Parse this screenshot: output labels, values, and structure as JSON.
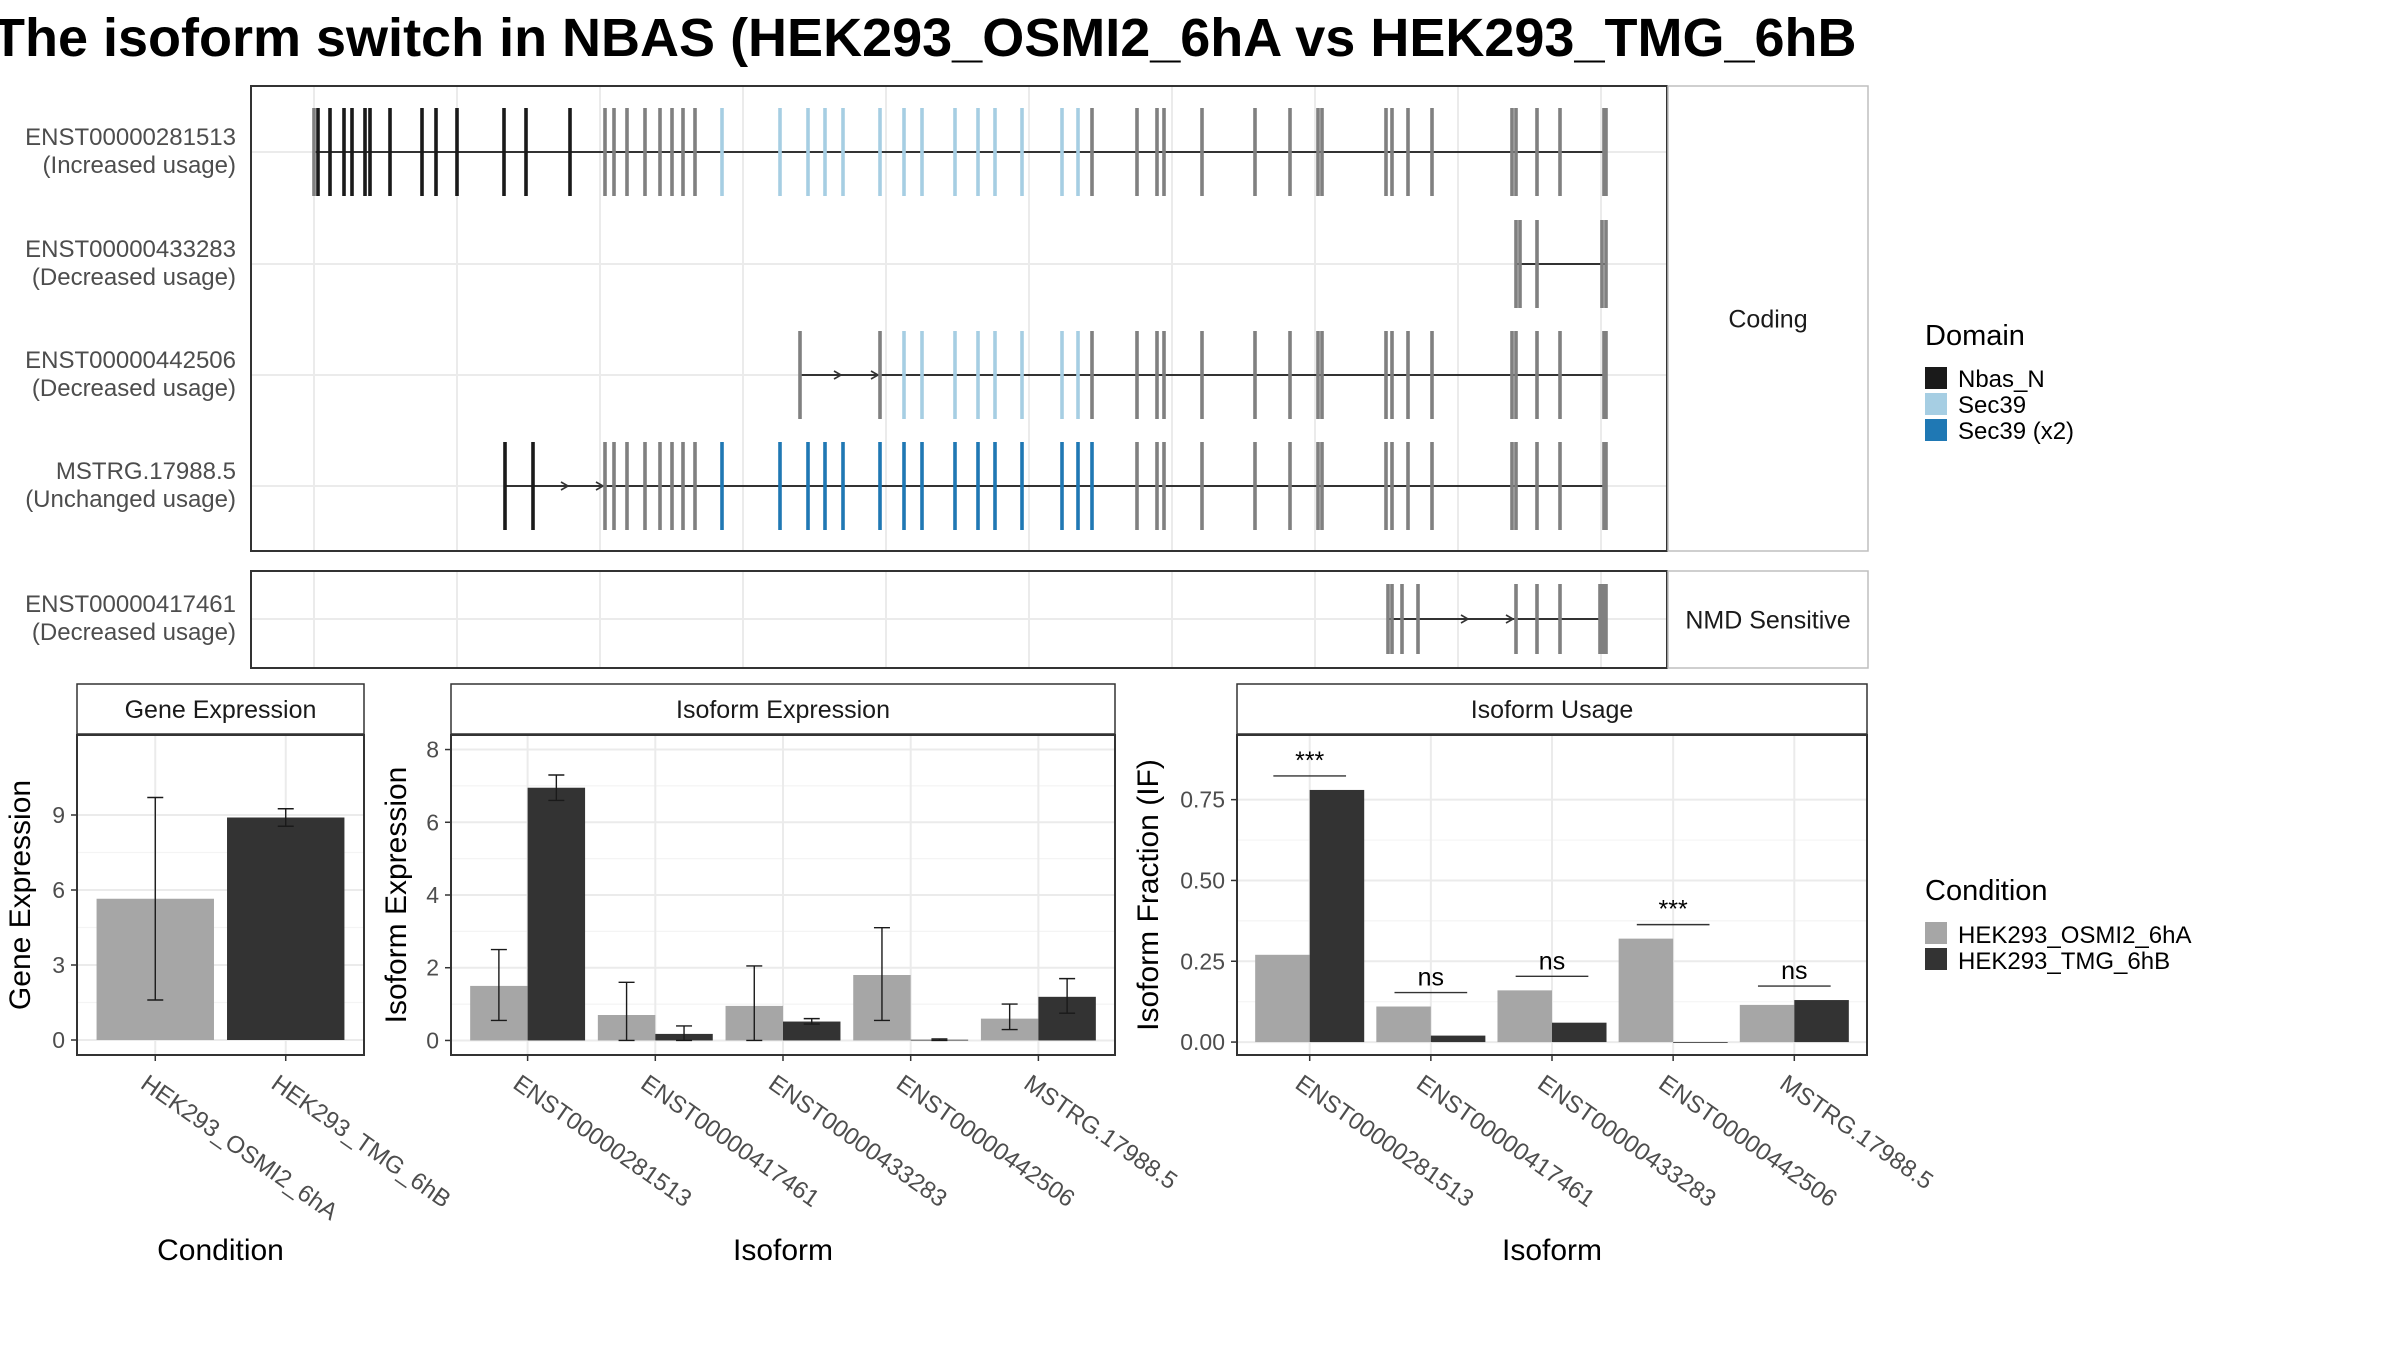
{
  "title": "The isoform switch in NBAS (HEK293_OSMI2_6hA vs HEK293_TMG_6hB",
  "colors": {
    "nbas_n": "#1a1a1a",
    "sec39": "#a6cee3",
    "sec39x2": "#1f78b4",
    "plain": "#808080",
    "cond_a": "#a6a6a6",
    "cond_b": "#333333"
  },
  "transcripts": {
    "panels": [
      {
        "strip": "Coding",
        "rows": [
          {
            "id": "ENST00000281513",
            "label": "(Increased usage)"
          },
          {
            "id": "ENST00000433283",
            "label": "(Decreased usage)"
          },
          {
            "id": "ENST00000442506",
            "label": "(Decreased usage)"
          },
          {
            "id": "MSTRG.17988.5",
            "label": "(Unchanged usage)"
          }
        ]
      },
      {
        "strip": "NMD Sensitive",
        "rows": [
          {
            "id": "ENST00000417461",
            "label": "(Decreased usage)"
          }
        ]
      }
    ],
    "legend": {
      "title": "Domain",
      "entries": [
        {
          "label": "Nbas_N",
          "color": "#1a1a1a"
        },
        {
          "label": "Sec39",
          "color": "#a6cee3"
        },
        {
          "label": "Sec39 (x2)",
          "color": "#1f78b4"
        }
      ]
    }
  },
  "chart_data": [
    {
      "type": "bar",
      "title": "Gene Expression",
      "xlabel": "Condition",
      "ylabel": "Gene Expression",
      "categories": [
        "HEK293_OSMI2_6hA",
        "HEK293_TMG_6hB"
      ],
      "values": [
        5.65,
        8.9
      ],
      "error_low": [
        1.6,
        8.55
      ],
      "error_high": [
        9.7,
        9.25
      ],
      "ylim": [
        -0.6,
        12.2
      ],
      "yticks": [
        0,
        3,
        6,
        9
      ],
      "grid": true
    },
    {
      "type": "bar",
      "title": "Isoform Expression",
      "xlabel": "Isoform",
      "ylabel": "Isoform Expression",
      "categories": [
        "ENST00000281513",
        "ENST00000417461",
        "ENST00000433283",
        "ENST00000442506",
        "MSTRG.17988.5"
      ],
      "series": [
        {
          "name": "HEK293_OSMI2_6hA",
          "values": [
            1.5,
            0.7,
            0.95,
            1.8,
            0.6
          ],
          "error_low": [
            0.55,
            0.0,
            0.0,
            0.55,
            0.3
          ],
          "error_high": [
            2.5,
            1.6,
            2.05,
            3.1,
            1.0
          ]
        },
        {
          "name": "HEK293_TMG_6hB",
          "values": [
            6.95,
            0.18,
            0.52,
            0.02,
            1.2
          ],
          "error_low": [
            6.6,
            0.0,
            0.45,
            0.0,
            0.75
          ],
          "error_high": [
            7.3,
            0.4,
            0.6,
            0.04,
            1.7
          ]
        }
      ],
      "ylim": [
        -0.4,
        8.4
      ],
      "yticks": [
        0,
        2,
        4,
        6,
        8
      ],
      "grid": true
    },
    {
      "type": "bar",
      "title": "Isoform Usage",
      "xlabel": "Isoform",
      "ylabel": "Isoform Fraction (IF)",
      "categories": [
        "ENST00000281513",
        "ENST00000417461",
        "ENST00000433283",
        "ENST00000442506",
        "MSTRG.17988.5"
      ],
      "series": [
        {
          "name": "HEK293_OSMI2_6hA",
          "values": [
            0.27,
            0.11,
            0.16,
            0.32,
            0.115
          ]
        },
        {
          "name": "HEK293_TMG_6hB",
          "values": [
            0.78,
            0.02,
            0.06,
            0.0,
            0.13
          ]
        }
      ],
      "annotations": [
        {
          "category": "ENST00000281513",
          "text": "***"
        },
        {
          "category": "ENST00000417461",
          "text": "ns"
        },
        {
          "category": "ENST00000433283",
          "text": "ns"
        },
        {
          "category": "ENST00000442506",
          "text": "***"
        },
        {
          "category": "MSTRG.17988.5",
          "text": "ns"
        }
      ],
      "ylim": [
        -0.04,
        0.95
      ],
      "yticks": [
        0.0,
        0.25,
        0.5,
        0.75
      ],
      "yticklabels": [
        "0.00",
        "0.25",
        "0.50",
        "0.75"
      ],
      "grid": true,
      "legend": {
        "title": "Condition",
        "position": "right",
        "entries": [
          {
            "label": "HEK293_OSMI2_6hA",
            "color": "#a6a6a6"
          },
          {
            "label": "HEK293_TMG_6hB",
            "color": "#333333"
          }
        ]
      }
    }
  ]
}
